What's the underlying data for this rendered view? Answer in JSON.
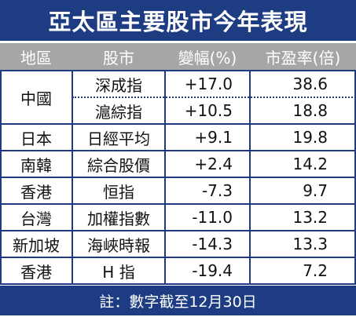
{
  "header": {
    "title": "亞太區主要股市今年表現"
  },
  "table": {
    "columns": [
      "地區",
      "股市",
      "變幅(%)",
      "市盈率(倍)"
    ],
    "groups": [
      {
        "region": "中國",
        "rows": [
          [
            "深成指",
            "+17.0",
            "38.6"
          ],
          [
            "滬綜指",
            "+10.5",
            "18.8"
          ]
        ]
      },
      {
        "region": "日本",
        "rows": [
          [
            "日經平均",
            "+9.1",
            "19.8"
          ]
        ]
      },
      {
        "region": "南韓",
        "rows": [
          [
            "綜合股價",
            "+2.4",
            "14.2"
          ]
        ]
      },
      {
        "region": "香港",
        "rows": [
          [
            "恒指",
            "-7.3",
            "9.7"
          ]
        ]
      },
      {
        "region": "台灣",
        "rows": [
          [
            "加權指數",
            "-11.0",
            "13.2"
          ]
        ]
      },
      {
        "region": "新加坡",
        "rows": [
          [
            "海峽時報",
            "-14.3",
            "13.3"
          ]
        ]
      },
      {
        "region": "香港",
        "rows": [
          [
            "H 指",
            "-19.4",
            "7.2"
          ]
        ]
      }
    ]
  },
  "footer": {
    "note": "註：數字截至12月30日"
  }
}
